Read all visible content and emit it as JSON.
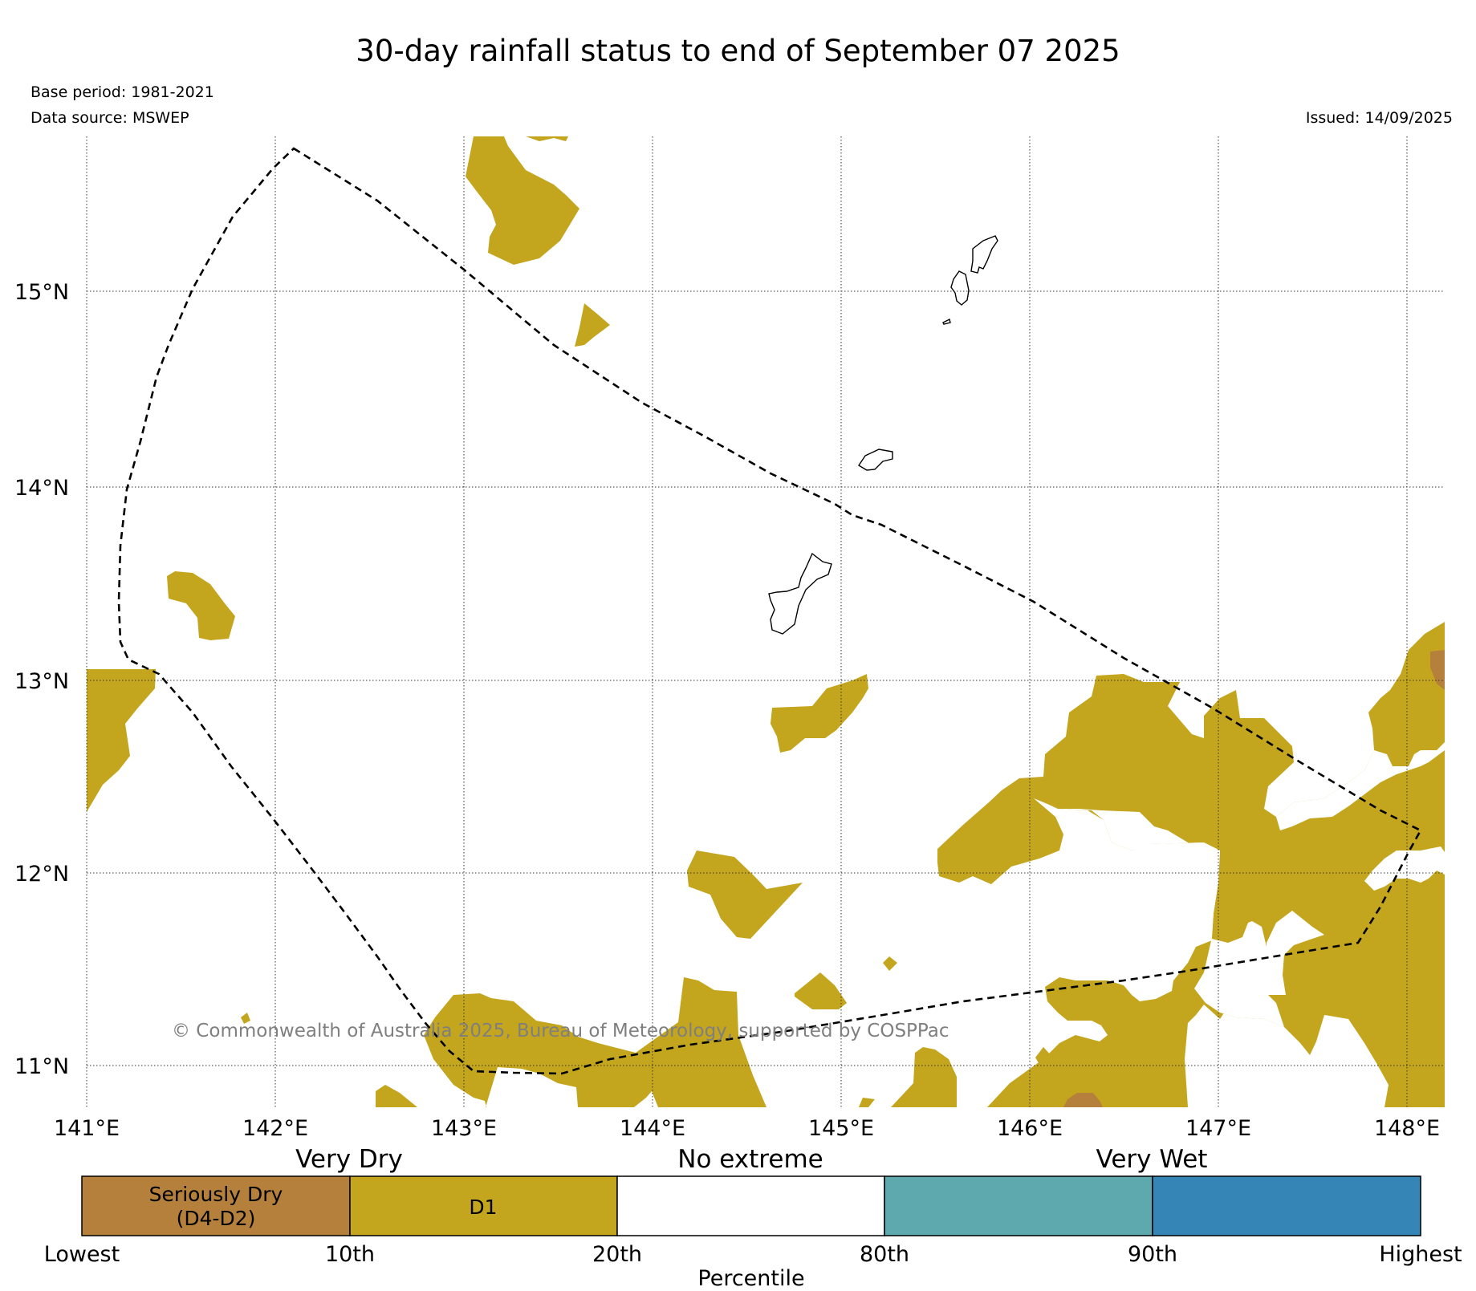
{
  "title": "30-day rainfall status to end of September 07 2025",
  "base_period": "Base period: 1981-2021",
  "data_source": "Data source: MSWEP",
  "issued": "Issued: 14/09/2025",
  "copyright": "© Commonwealth of Australia 2025, Bureau of Meteorology, supported by COSPPac",
  "map": {
    "lat_labels": [
      "15°N",
      "14°N",
      "13°N",
      "12°N",
      "11°N"
    ],
    "lon_labels": [
      "141°E",
      "142°E",
      "143°E",
      "144°E",
      "145°E",
      "146°E",
      "147°E",
      "148°E"
    ],
    "colors": {
      "d1": "#c4a51e",
      "seriously_dry": "#b5803b",
      "no_extreme": "#ffffff",
      "very_wet_80_90": "#5ea9ae",
      "very_wet_90_highest": "#3585b7"
    }
  },
  "legend": {
    "category_labels": [
      "Very Dry",
      "No extreme",
      "Very Wet"
    ],
    "boxes": [
      {
        "line1": "Seriously Dry",
        "line2": "(D4-D2)",
        "color": "#b5803b"
      },
      {
        "line1": "D1",
        "line2": "",
        "color": "#c4a51e"
      },
      {
        "line1": "",
        "line2": "",
        "color": "#ffffff"
      },
      {
        "line1": "",
        "line2": "",
        "color": "#5ea9ae"
      },
      {
        "line1": "",
        "line2": "",
        "color": "#3585b7"
      }
    ],
    "percentile_ticks": [
      "Lowest",
      "10th",
      "20th",
      "80th",
      "90th",
      "Highest"
    ],
    "axis_label": "Percentile"
  }
}
